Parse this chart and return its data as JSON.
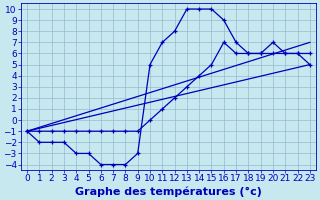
{
  "xlabel": "Graphe des températures (°c)",
  "bg_color": "#c8e8f0",
  "grid_color": "#90bcd0",
  "line_color": "#0000bb",
  "xlim": [
    0,
    23
  ],
  "ylim": [
    -4,
    10
  ],
  "xtick_vals": [
    0,
    1,
    2,
    3,
    4,
    5,
    6,
    7,
    8,
    9,
    10,
    11,
    12,
    13,
    14,
    15,
    16,
    17,
    18,
    19,
    20,
    21,
    22,
    23
  ],
  "ytick_vals": [
    -4,
    -3,
    -2,
    -1,
    0,
    1,
    2,
    3,
    4,
    5,
    6,
    7,
    8,
    9,
    10
  ],
  "curve_main_x": [
    0,
    1,
    2,
    3,
    4,
    5,
    6,
    7,
    8,
    9,
    10,
    11,
    12,
    13,
    14,
    15,
    16,
    17,
    18,
    19,
    20,
    21,
    22,
    23
  ],
  "curve_main_y": [
    -1,
    -2,
    -2,
    -2,
    -3,
    -3,
    -4,
    -4,
    -4,
    -3,
    5,
    7,
    8,
    10,
    10,
    10,
    9,
    7,
    6,
    6,
    6,
    6,
    6,
    5
  ],
  "curve_upper_x": [
    0,
    1,
    2,
    3,
    4,
    5,
    6,
    7,
    8,
    9,
    10,
    11,
    12,
    13,
    14,
    15,
    16,
    17,
    18,
    19,
    20,
    21,
    22,
    23
  ],
  "curve_upper_y": [
    -1,
    -1,
    -1,
    -1,
    -1,
    -1,
    -1,
    -1,
    -1,
    -1,
    0,
    1,
    2,
    3,
    4,
    5,
    7,
    6,
    6,
    6,
    7,
    6,
    6,
    6
  ],
  "trend1_x": [
    0,
    23
  ],
  "trend1_y": [
    -1,
    7
  ],
  "trend2_x": [
    0,
    23
  ],
  "trend2_y": [
    -1,
    5
  ],
  "fontsize_xlabel": 8,
  "tick_fontsize": 6.5
}
